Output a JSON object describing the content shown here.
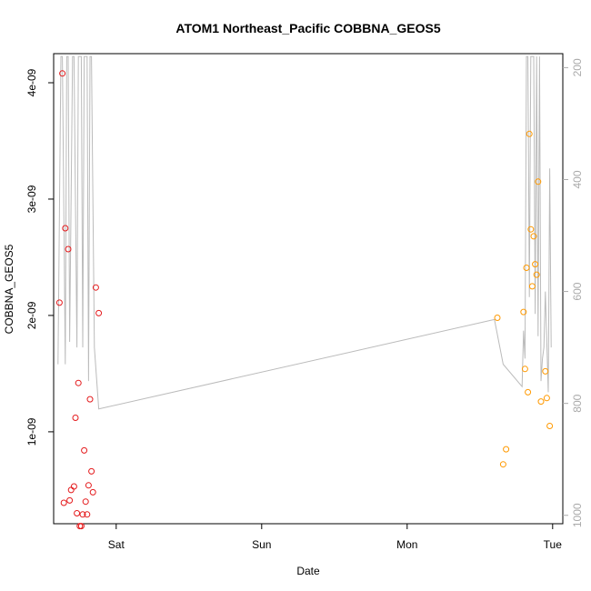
{
  "chart_data": {
    "type": "scatter",
    "title": "ATOM1 Northeast_Pacific COBBNA_GEOS5",
    "xlabel": "Date",
    "ylabel": "COBBNA_GEOS5",
    "x_ticks": [
      {
        "label": "Sat",
        "value": 1.0
      },
      {
        "label": "Sun",
        "value": 2.0
      },
      {
        "label": "Mon",
        "value": 3.0
      },
      {
        "label": "Tue",
        "value": 4.0
      }
    ],
    "xlim": [
      0.57,
      4.07
    ],
    "y_ticks": [
      {
        "label": "1e-09",
        "value": 1e-09
      },
      {
        "label": "2e-09",
        "value": 2e-09
      },
      {
        "label": "3e-09",
        "value": 3e-09
      },
      {
        "label": "4e-09",
        "value": 4e-09
      }
    ],
    "ylim": [
      2.1e-10,
      4.25e-09
    ],
    "y2_ticks": [
      {
        "label": "200",
        "value": 200
      },
      {
        "label": "400",
        "value": 400
      },
      {
        "label": "600",
        "value": 600
      },
      {
        "label": "800",
        "value": 800
      },
      {
        "label": "1000",
        "value": 1000
      }
    ],
    "y2lim": [
      1015,
      175
    ],
    "grid": false,
    "colors": {
      "red": "#e41a1c",
      "orange": "#ff9900",
      "line": "#bbbbbb",
      "axis": "#000000",
      "y2_axis": "#aaaaaa"
    },
    "series": [
      {
        "color": "#e41a1c",
        "x": [
          0.61,
          0.63,
          0.64,
          0.65,
          0.67,
          0.68,
          0.69,
          0.71,
          0.72,
          0.73,
          0.74,
          0.75,
          0.76,
          0.77,
          0.78,
          0.79,
          0.8,
          0.81,
          0.82,
          0.83,
          0.84,
          0.86,
          0.88
        ],
        "y": [
          2.11e-09,
          4.08e-09,
          3.9e-10,
          2.75e-09,
          2.57e-09,
          4.1e-10,
          5e-10,
          5.3e-10,
          1.12e-09,
          3e-10,
          1.42e-09,
          1.9e-10,
          1.9e-10,
          2.9e-10,
          8.4e-10,
          4e-10,
          2.9e-10,
          5.4e-10,
          1.28e-09,
          6.6e-10,
          4.8e-10,
          2.24e-09,
          2.02e-09
        ]
      },
      {
        "color": "#ff9900",
        "x": [
          3.62,
          3.66,
          3.68,
          3.8,
          3.81,
          3.82,
          3.83,
          3.84,
          3.85,
          3.86,
          3.87,
          3.88,
          3.89,
          3.9,
          3.92,
          3.95,
          3.96,
          3.98
        ],
        "y": [
          1.98e-09,
          7.2e-10,
          8.5e-10,
          2.03e-09,
          1.54e-09,
          2.41e-09,
          1.34e-09,
          3.56e-09,
          2.74e-09,
          2.25e-09,
          2.68e-09,
          2.44e-09,
          2.35e-09,
          3.15e-09,
          1.26e-09,
          1.52e-09,
          1.29e-09,
          1.05e-09
        ]
      }
    ],
    "pressure_line": {
      "color": "#bbbbbb",
      "axis": "y2",
      "x": [
        0.6,
        0.62,
        0.63,
        0.65,
        0.66,
        0.67,
        0.68,
        0.7,
        0.71,
        0.73,
        0.74,
        0.76,
        0.77,
        0.78,
        0.79,
        0.8,
        0.81,
        0.82,
        0.83,
        0.85,
        0.88,
        3.6,
        3.66,
        3.79,
        3.8,
        3.81,
        3.82,
        3.83,
        3.84,
        3.85,
        3.86,
        3.87,
        3.88,
        3.89,
        3.9,
        3.91,
        3.92,
        3.93,
        3.94,
        3.95,
        3.97,
        3.98,
        3.99
      ],
      "y": [
        730,
        180,
        180,
        730,
        180,
        180,
        690,
        180,
        180,
        700,
        180,
        180,
        700,
        180,
        180,
        180,
        760,
        180,
        180,
        700,
        810,
        650,
        730,
        770,
        670,
        720,
        180,
        180,
        610,
        180,
        180,
        180,
        640,
        180,
        680,
        180,
        760,
        720,
        700,
        600,
        780,
        380,
        700
      ]
    },
    "legend": "none"
  }
}
